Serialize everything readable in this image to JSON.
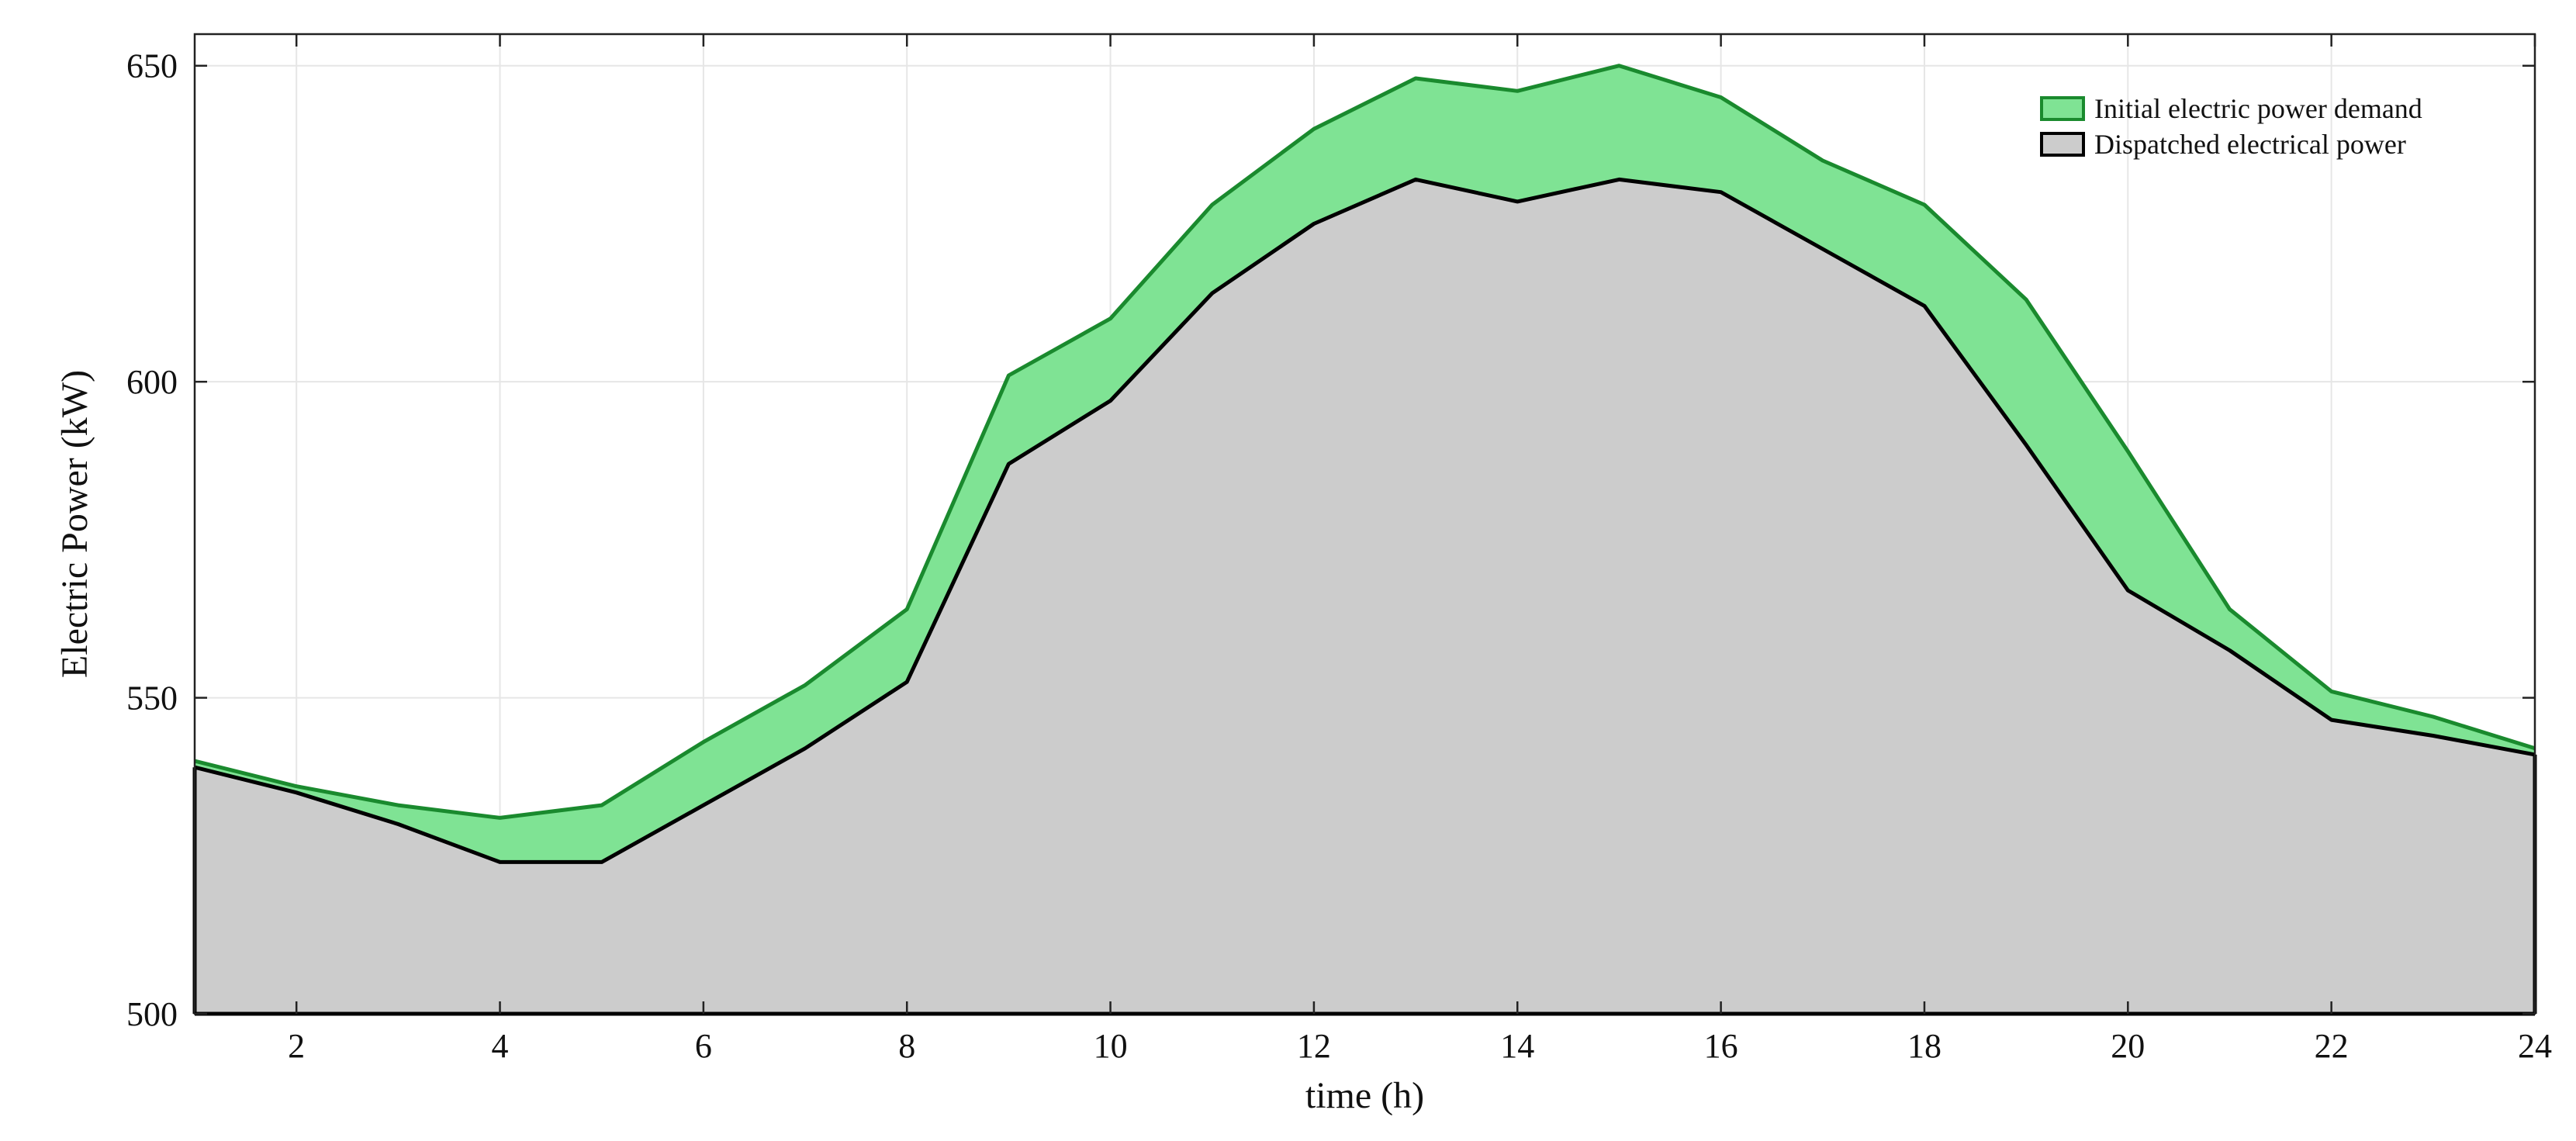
{
  "chart_data": {
    "type": "area",
    "title": "",
    "xlabel": "time (h)",
    "ylabel": "Electric Power (kW)",
    "xlim": [
      1,
      24
    ],
    "ylim": [
      500,
      655
    ],
    "xticks": [
      2,
      4,
      6,
      8,
      10,
      12,
      14,
      16,
      18,
      20,
      22,
      24
    ],
    "yticks": [
      500,
      550,
      600,
      650
    ],
    "grid": true,
    "legend_position": "top-right",
    "x": [
      1,
      2,
      3,
      4,
      5,
      6,
      7,
      8,
      9,
      10,
      11,
      12,
      13,
      14,
      15,
      16,
      17,
      18,
      19,
      20,
      21,
      22,
      23,
      24
    ],
    "series": [
      {
        "name": "Initial electric power demand",
        "fill": "#7fe394",
        "stroke": "#1a8a2e",
        "values": [
          540,
          536,
          533,
          531,
          533,
          543,
          552,
          564,
          601,
          610,
          628,
          640,
          648,
          646,
          650,
          645,
          635,
          628,
          613,
          589,
          564,
          551,
          547,
          542
        ]
      },
      {
        "name": "Dispatched electrical power",
        "fill": "#cccccc",
        "stroke": "#000000",
        "values": [
          539,
          535,
          530,
          524,
          524,
          533,
          542,
          552.5,
          587,
          597,
          614,
          625,
          632,
          628.5,
          632,
          630,
          621,
          612,
          590,
          567,
          557.5,
          546.5,
          544,
          541
        ]
      }
    ]
  }
}
